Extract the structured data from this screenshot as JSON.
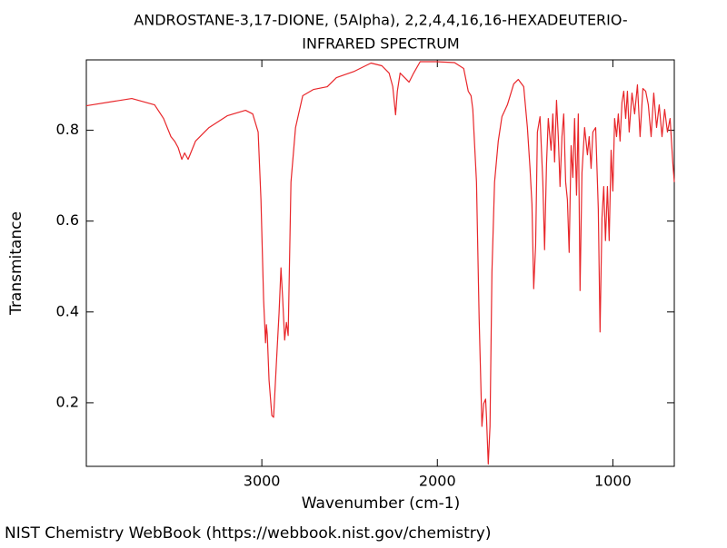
{
  "chart_data": {
    "type": "line",
    "title": "ANDROSTANE-3,17-DIONE, (5Alpha), 2,2,4,4,16,16-HEXADEUTERIO-",
    "subtitle": "INFRARED SPECTRUM",
    "x_label": "Wavenumber (cm-1)",
    "y_label": "Transmitance",
    "footer": "NIST Chemistry WebBook (https://webbook.nist.gov/chemistry)",
    "xlim": [
      4000,
      650
    ],
    "ylim": [
      0.06,
      0.955
    ],
    "xticks": [
      3000,
      2000,
      1000
    ],
    "yticks": [
      0.2,
      0.4,
      0.6,
      0.8
    ],
    "grid": false,
    "x": [
      4000,
      3741,
      3611,
      3560,
      3518,
      3497,
      3477,
      3456,
      3440,
      3420,
      3378,
      3301,
      3197,
      3093,
      3052,
      3021,
      3005,
      2990,
      2979,
      2974,
      2969,
      2959,
      2943,
      2933,
      2917,
      2902,
      2891,
      2881,
      2870,
      2860,
      2850,
      2834,
      2808,
      2767,
      2705,
      2627,
      2575,
      2472,
      2378,
      2316,
      2275,
      2254,
      2238,
      2228,
      2212,
      2181,
      2161,
      2135,
      2098,
      2005,
      1902,
      1850,
      1824,
      1808,
      1798,
      1777,
      1762,
      1746,
      1736,
      1725,
      1720,
      1710,
      1700,
      1689,
      1674,
      1653,
      1632,
      1601,
      1565,
      1539,
      1508,
      1487,
      1472,
      1461,
      1451,
      1440,
      1430,
      1415,
      1399,
      1389,
      1378,
      1368,
      1352,
      1342,
      1332,
      1321,
      1311,
      1301,
      1290,
      1280,
      1269,
      1259,
      1249,
      1238,
      1228,
      1218,
      1207,
      1197,
      1187,
      1176,
      1161,
      1145,
      1135,
      1124,
      1114,
      1098,
      1083,
      1073,
      1062,
      1052,
      1042,
      1031,
      1021,
      1010,
      1000,
      990,
      979,
      969,
      959,
      948,
      938,
      927,
      917,
      907,
      891,
      876,
      860,
      845,
      829,
      813,
      798,
      782,
      767,
      751,
      736,
      720,
      705,
      689,
      674,
      658,
      650
    ],
    "series": [
      {
        "name": "spectrum",
        "color": "#e8262a",
        "values": [
          0.854,
          0.87,
          0.856,
          0.826,
          0.786,
          0.776,
          0.762,
          0.736,
          0.75,
          0.736,
          0.776,
          0.806,
          0.832,
          0.844,
          0.836,
          0.796,
          0.647,
          0.427,
          0.332,
          0.372,
          0.35,
          0.25,
          0.172,
          0.168,
          0.288,
          0.397,
          0.497,
          0.427,
          0.338,
          0.377,
          0.348,
          0.686,
          0.806,
          0.876,
          0.89,
          0.896,
          0.916,
          0.93,
          0.948,
          0.942,
          0.926,
          0.896,
          0.834,
          0.886,
          0.926,
          0.914,
          0.906,
          0.926,
          0.951,
          0.951,
          0.949,
          0.936,
          0.886,
          0.876,
          0.846,
          0.686,
          0.387,
          0.148,
          0.198,
          0.208,
          0.168,
          0.065,
          0.148,
          0.487,
          0.686,
          0.776,
          0.83,
          0.856,
          0.902,
          0.912,
          0.896,
          0.806,
          0.716,
          0.637,
          0.451,
          0.547,
          0.796,
          0.83,
          0.686,
          0.537,
          0.726,
          0.826,
          0.756,
          0.836,
          0.73,
          0.866,
          0.786,
          0.676,
          0.786,
          0.836,
          0.686,
          0.647,
          0.531,
          0.766,
          0.696,
          0.826,
          0.657,
          0.836,
          0.447,
          0.706,
          0.806,
          0.746,
          0.786,
          0.716,
          0.796,
          0.806,
          0.627,
          0.356,
          0.607,
          0.676,
          0.557,
          0.676,
          0.557,
          0.756,
          0.666,
          0.826,
          0.786,
          0.836,
          0.776,
          0.862,
          0.886,
          0.826,
          0.886,
          0.796,
          0.882,
          0.836,
          0.9,
          0.786,
          0.892,
          0.886,
          0.856,
          0.786,
          0.882,
          0.806,
          0.856,
          0.786,
          0.846,
          0.796,
          0.826,
          0.726,
          0.686
        ]
      }
    ]
  }
}
